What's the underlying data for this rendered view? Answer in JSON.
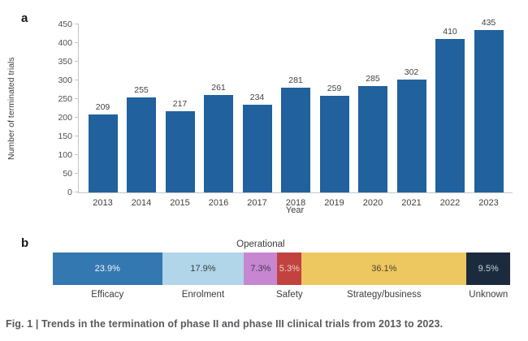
{
  "figure": {
    "panel_a_label": "a",
    "panel_b_label": "b",
    "caption": "Fig. 1 | Trends in the termination of phase II and phase III clinical trials from 2013 to 2023."
  },
  "chart_data": [
    {
      "type": "bar",
      "panel": "a",
      "categories": [
        "2013",
        "2014",
        "2015",
        "2016",
        "2017",
        "2018",
        "2019",
        "2020",
        "2021",
        "2022",
        "2023"
      ],
      "values": [
        209,
        255,
        217,
        261,
        234,
        281,
        259,
        285,
        302,
        410,
        435
      ],
      "xlabel": "Year",
      "ylabel": "Number of terminated trials",
      "ylim": [
        0,
        450
      ],
      "yticks": [
        0,
        50,
        100,
        150,
        200,
        250,
        300,
        350,
        400,
        450
      ],
      "grid": false,
      "legend": "none",
      "bar_color": "#20619e",
      "value_labels_shown": true
    },
    {
      "type": "bar",
      "subtype": "stacked-horizontal",
      "panel": "b",
      "unit": "percent",
      "total": 100,
      "segments": [
        {
          "label": "Efficacy",
          "value": 23.9,
          "display": "23.9%",
          "color": "#3478b1",
          "text_color": "#f0f5fa",
          "label_position": "below"
        },
        {
          "label": "Enrolment",
          "value": 17.9,
          "display": "17.9%",
          "color": "#b1d5e9",
          "text_color": "#3c3c3c",
          "label_position": "below"
        },
        {
          "label": "Operational",
          "value": 7.3,
          "display": "7.3%",
          "color": "#c687d0",
          "text_color": "#43394f",
          "label_position": "above"
        },
        {
          "label": "Safety",
          "value": 5.3,
          "display": "5.3%",
          "color": "#c2423f",
          "text_color": "#edccc9",
          "label_position": "below"
        },
        {
          "label": "Strategy/business",
          "value": 36.1,
          "display": "36.1%",
          "color": "#edc75f",
          "text_color": "#4c4433",
          "label_position": "below"
        },
        {
          "label": "Unknown",
          "value": 9.5,
          "display": "9.5%",
          "color": "#1c2a3e",
          "text_color": "#ccd2da",
          "label_position": "below"
        }
      ]
    }
  ]
}
